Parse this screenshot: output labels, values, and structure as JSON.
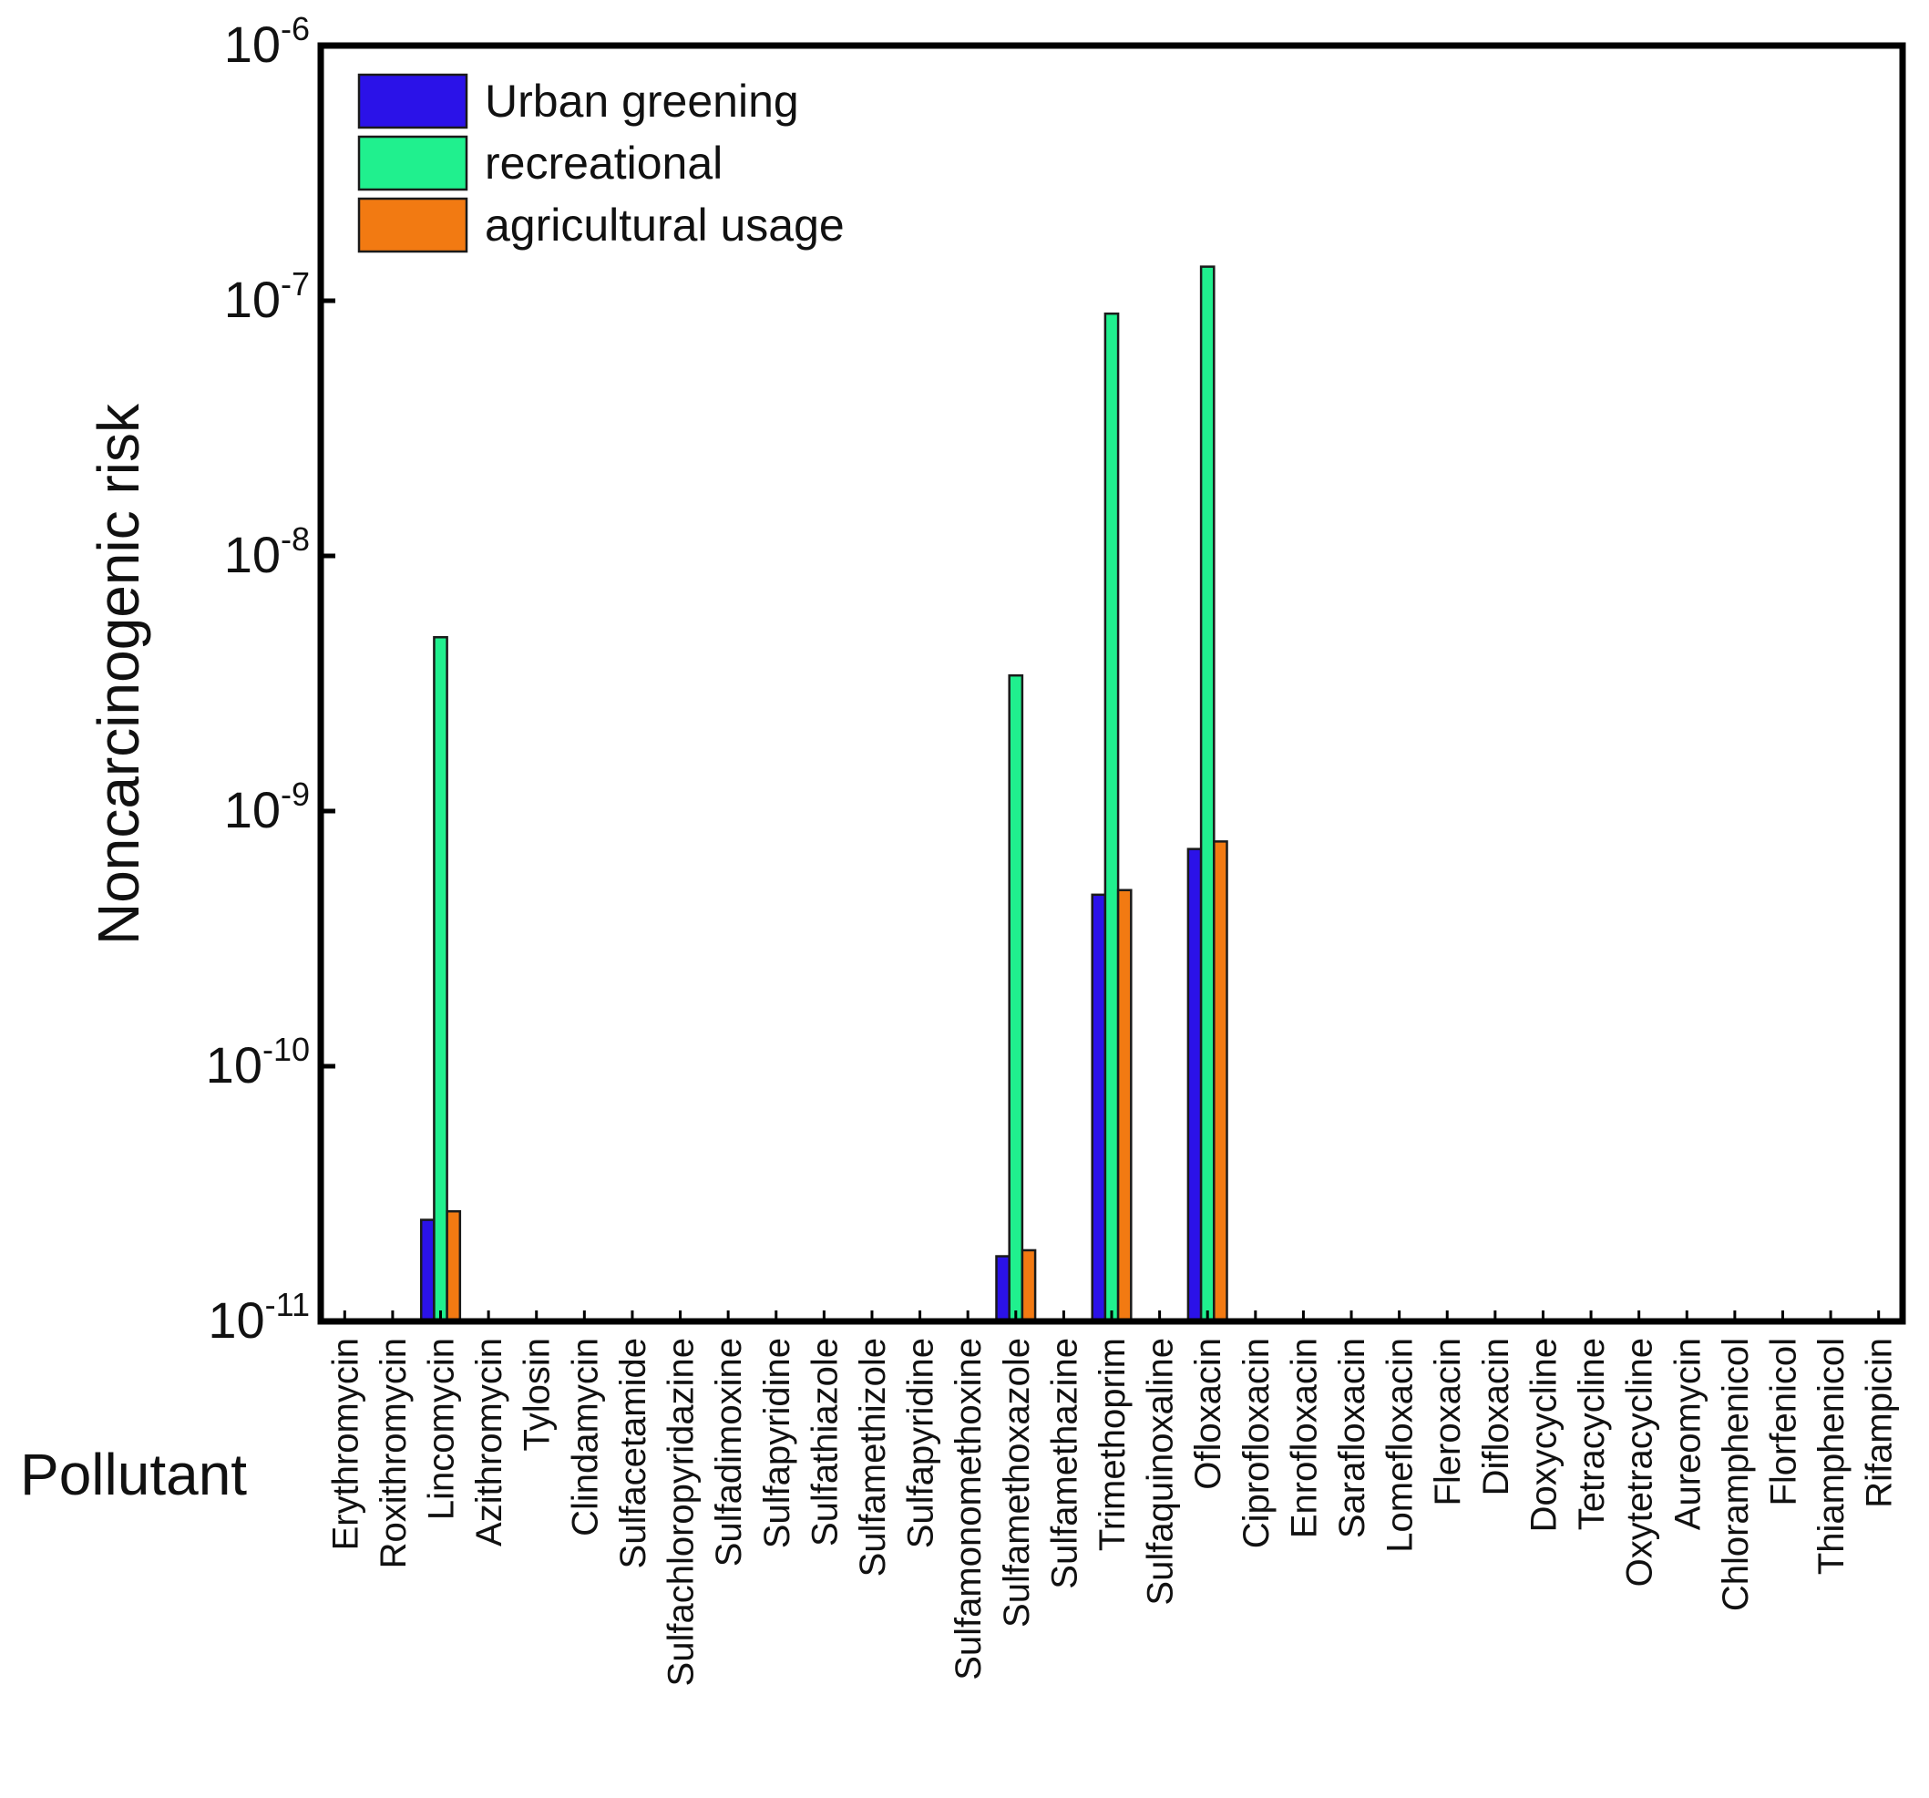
{
  "chart_data": {
    "type": "bar",
    "scale": "log",
    "ylim": [
      1e-11,
      1e-06
    ],
    "ylabel": "Noncarcinogenic risk",
    "xlabel": "Pollutant",
    "yticks": [
      {
        "value": 1e-11,
        "base": "10",
        "exp": "-11"
      },
      {
        "value": 1e-10,
        "base": "10",
        "exp": "-10"
      },
      {
        "value": 1e-09,
        "base": "10",
        "exp": "-9"
      },
      {
        "value": 1e-08,
        "base": "10",
        "exp": "-8"
      },
      {
        "value": 1e-07,
        "base": "10",
        "exp": "-7"
      },
      {
        "value": 1e-06,
        "base": "10",
        "exp": "-6"
      }
    ],
    "legend": {
      "placement": "top-left"
    },
    "categories": [
      "Erythromycin",
      "Roxithromycin",
      "Lincomycin",
      "Azithromycin",
      "Tylosin",
      "Clindamycin",
      "Sulfacetamide",
      "Sulfachloropyridazine",
      "Sulfadimoxine",
      "Sulfapyridine",
      "Sulfathiazole",
      "Sulfamethizole",
      "Sulfapyridine",
      "Sulfamonomethoxine",
      "Sulfamethoxazole",
      "Sulfamethazine",
      "Trimethoprim",
      "Sulfaquinoxaline",
      "Ofloxacin",
      "Ciprofloxacin",
      "Enrofloxacin",
      "Sarafloxacin",
      "Lomefloxacin",
      "Fleroxacin",
      "Difloxacin",
      "Doxycycline",
      "Tetracycline",
      "Oxytetracycline",
      "Aureomycin",
      "Chloramphenicol",
      "Florfenicol",
      "Thiamphenicol",
      "Rifampicin"
    ],
    "series": [
      {
        "name": "Urban greening",
        "color": "#2b12e8",
        "values": [
          null,
          null,
          2.5e-11,
          null,
          null,
          null,
          null,
          null,
          null,
          null,
          null,
          null,
          null,
          null,
          1.8e-11,
          null,
          4.7e-10,
          null,
          7.1e-10,
          null,
          null,
          null,
          null,
          null,
          null,
          null,
          null,
          null,
          null,
          null,
          null,
          null,
          null
        ]
      },
      {
        "name": "recreational",
        "color": "#20f08e",
        "values": [
          null,
          null,
          4.8e-09,
          null,
          null,
          null,
          null,
          null,
          null,
          null,
          null,
          null,
          null,
          null,
          3.4e-09,
          null,
          8.9e-08,
          null,
          1.36e-07,
          null,
          null,
          null,
          null,
          null,
          null,
          null,
          null,
          null,
          null,
          null,
          null,
          null,
          null
        ]
      },
      {
        "name": "agricultural usage",
        "color": "#f27a12",
        "values": [
          null,
          null,
          2.7e-11,
          null,
          null,
          null,
          null,
          null,
          null,
          null,
          null,
          null,
          null,
          null,
          1.9e-11,
          null,
          4.9e-10,
          null,
          7.6e-10,
          null,
          null,
          null,
          null,
          null,
          null,
          null,
          null,
          null,
          null,
          null,
          null,
          null,
          null
        ]
      }
    ]
  }
}
